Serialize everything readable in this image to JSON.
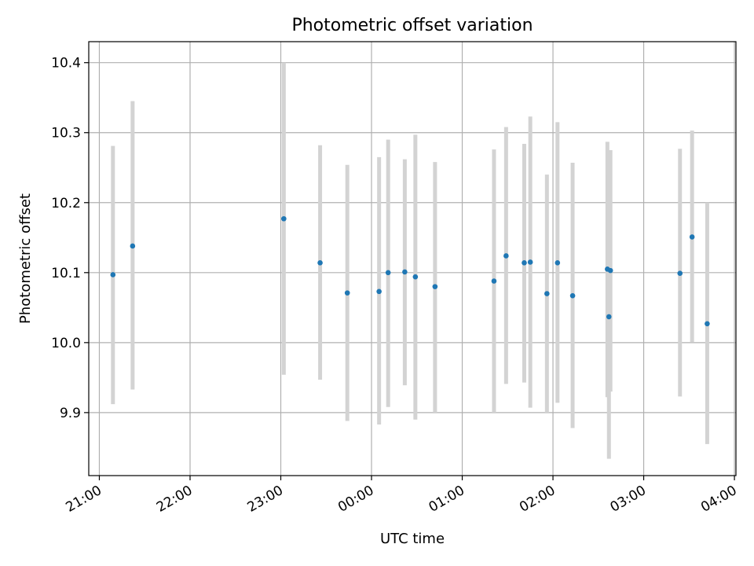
{
  "chart_data": {
    "type": "scatter",
    "title": "Photometric offset variation",
    "xlabel": "UTC time",
    "ylabel": "Photometric offset",
    "x_ticks": [
      "21:00",
      "22:00",
      "23:00",
      "00:00",
      "01:00",
      "02:00",
      "03:00",
      "04:00"
    ],
    "y_ticks": [
      "9.9",
      "10.0",
      "10.1",
      "10.2",
      "10.3",
      "10.4"
    ],
    "xlim": [
      "20:53",
      "04:01"
    ],
    "ylim": [
      9.81,
      10.43
    ],
    "grid": true,
    "series": [
      {
        "marker_color": "#1f77b4",
        "errorbar_color": "#d3d3d3",
        "points": [
          {
            "x": "21:09",
            "y": 10.097,
            "ylo": 9.912,
            "yhi": 10.281
          },
          {
            "x": "21:22",
            "y": 10.138,
            "ylo": 9.933,
            "yhi": 10.345
          },
          {
            "x": "23:02",
            "y": 10.177,
            "ylo": 9.954,
            "yhi": 10.4
          },
          {
            "x": "23:26",
            "y": 10.114,
            "ylo": 9.947,
            "yhi": 10.282
          },
          {
            "x": "23:44",
            "y": 10.071,
            "ylo": 9.888,
            "yhi": 10.254
          },
          {
            "x": "00:05",
            "y": 10.073,
            "ylo": 9.883,
            "yhi": 10.265
          },
          {
            "x": "00:11",
            "y": 10.1,
            "ylo": 9.908,
            "yhi": 10.29
          },
          {
            "x": "00:22",
            "y": 10.101,
            "ylo": 9.939,
            "yhi": 10.262
          },
          {
            "x": "00:29",
            "y": 10.094,
            "ylo": 9.89,
            "yhi": 10.297
          },
          {
            "x": "00:42",
            "y": 10.08,
            "ylo": 9.9,
            "yhi": 10.258
          },
          {
            "x": "01:21",
            "y": 10.088,
            "ylo": 9.9,
            "yhi": 10.276
          },
          {
            "x": "01:29",
            "y": 10.124,
            "ylo": 9.941,
            "yhi": 10.308
          },
          {
            "x": "01:41",
            "y": 10.114,
            "ylo": 9.943,
            "yhi": 10.284
          },
          {
            "x": "01:45",
            "y": 10.115,
            "ylo": 9.907,
            "yhi": 10.323
          },
          {
            "x": "01:56",
            "y": 10.07,
            "ylo": 9.9,
            "yhi": 10.24
          },
          {
            "x": "02:03",
            "y": 10.114,
            "ylo": 9.914,
            "yhi": 10.315
          },
          {
            "x": "02:13",
            "y": 10.067,
            "ylo": 9.878,
            "yhi": 10.257
          },
          {
            "x": "02:36",
            "y": 10.105,
            "ylo": 9.922,
            "yhi": 10.287
          },
          {
            "x": "02:37",
            "y": 10.037,
            "ylo": 9.834,
            "yhi": 10.24
          },
          {
            "x": "02:38",
            "y": 10.103,
            "ylo": 9.93,
            "yhi": 10.275
          },
          {
            "x": "03:24",
            "y": 10.099,
            "ylo": 9.923,
            "yhi": 10.277
          },
          {
            "x": "03:32",
            "y": 10.151,
            "ylo": 10.001,
            "yhi": 10.303
          },
          {
            "x": "03:42",
            "y": 10.027,
            "ylo": 9.855,
            "yhi": 10.2
          }
        ]
      }
    ]
  }
}
